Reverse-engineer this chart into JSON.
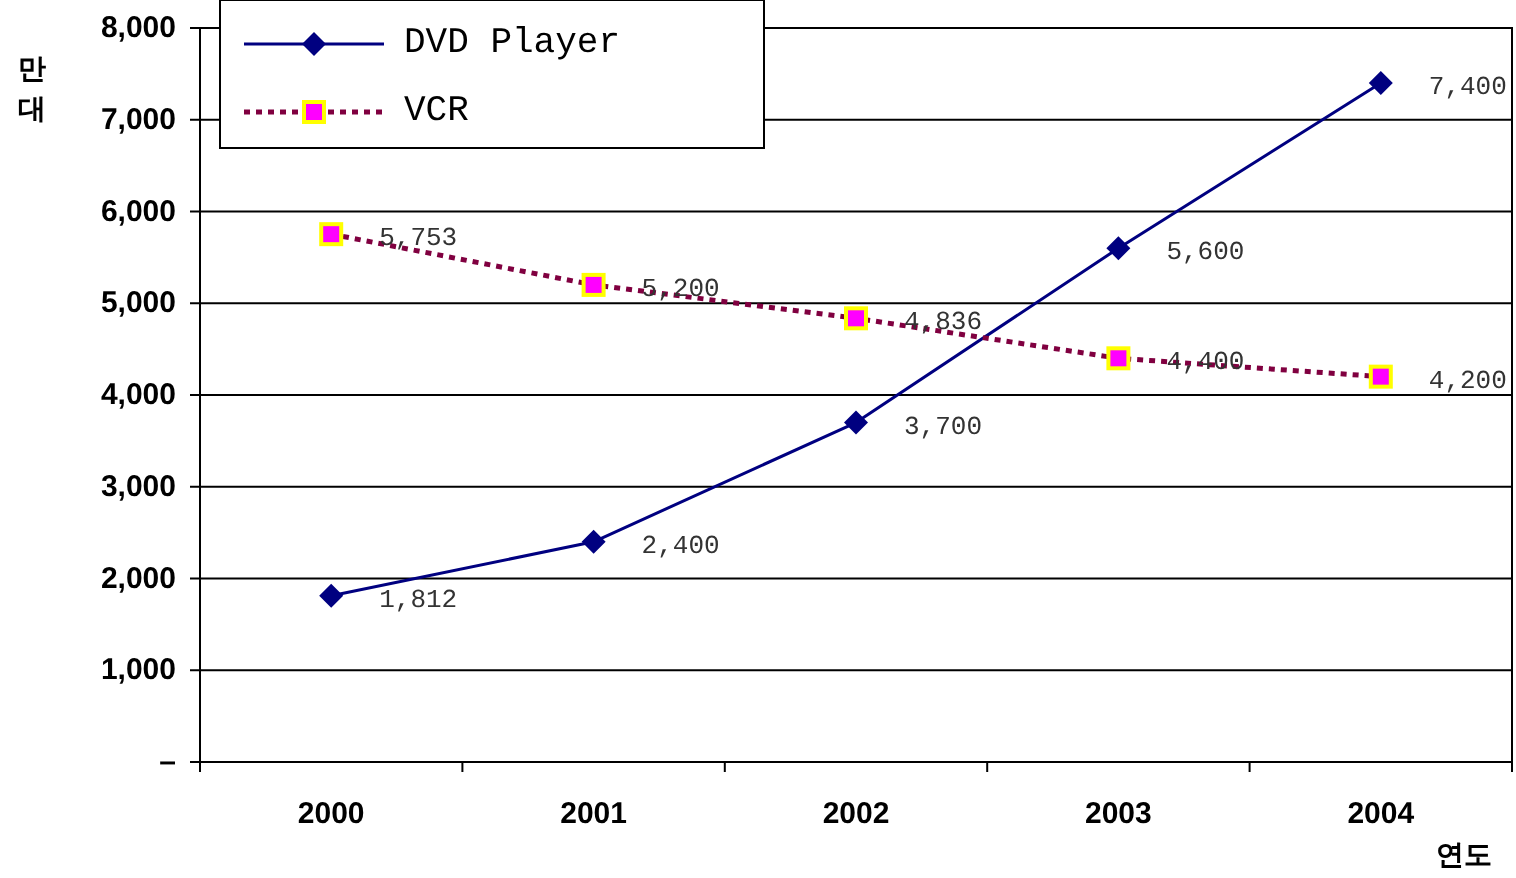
{
  "chart_data": {
    "type": "line",
    "ylabel": "만대",
    "xlabel": "연도",
    "categories": [
      "2000",
      "2001",
      "2002",
      "2003",
      "2004"
    ],
    "series": [
      {
        "name": "DVD Player",
        "color": "#000080",
        "values": [
          1812,
          2400,
          3700,
          5600,
          7400
        ],
        "value_labels": [
          "1,812",
          "2,400",
          "3,700",
          "5,600",
          "7,400"
        ],
        "marker": "diamond",
        "line_style": "solid"
      },
      {
        "name": "VCR",
        "color": "#800040",
        "values": [
          5753,
          5200,
          4836,
          4400,
          4200
        ],
        "value_labels": [
          "5,753",
          "5,200",
          "4,836",
          "4,400",
          "4,200"
        ],
        "marker": "square",
        "line_style": "dotted"
      }
    ],
    "ylim": [
      0,
      8000
    ],
    "yticks": [
      {
        "value": 0,
        "label": "–"
      },
      {
        "value": 1000,
        "label": "1,000"
      },
      {
        "value": 2000,
        "label": "2,000"
      },
      {
        "value": 3000,
        "label": "3,000"
      },
      {
        "value": 4000,
        "label": "4,000"
      },
      {
        "value": 5000,
        "label": "5,000"
      },
      {
        "value": 6000,
        "label": "6,000"
      },
      {
        "value": 7000,
        "label": "7,000"
      },
      {
        "value": 8000,
        "label": "8,000"
      }
    ],
    "grid": "y",
    "legend": "top left"
  }
}
